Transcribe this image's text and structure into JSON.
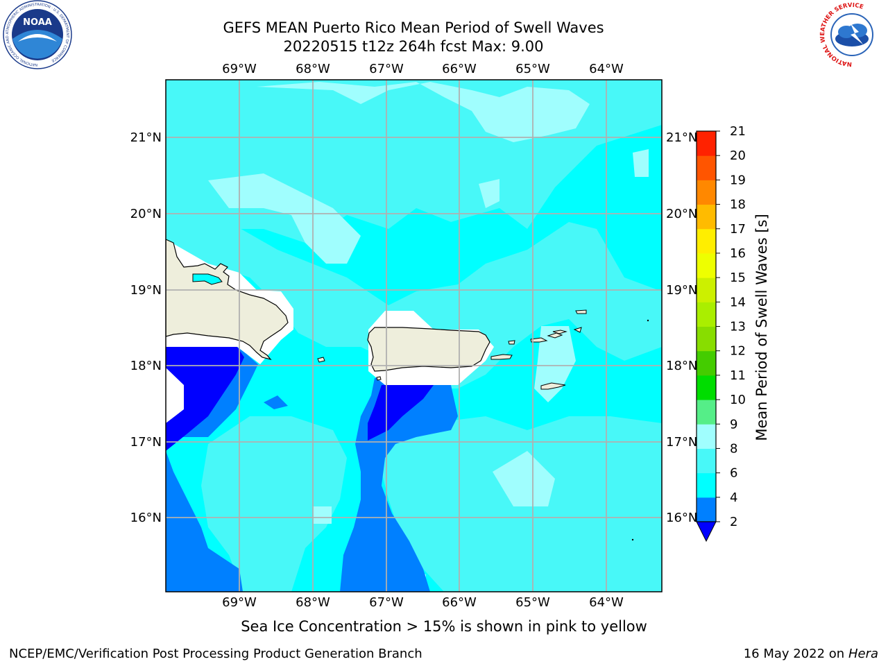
{
  "header": {
    "title_line1": "GEFS MEAN Puerto Rico Mean Period of Swell Waves",
    "title_line2": "20220515 t12z 264h fcst   Max: 9.00"
  },
  "map": {
    "lon_labels": [
      "69°W",
      "68°W",
      "67°W",
      "66°W",
      "65°W",
      "64°W"
    ],
    "lat_labels": [
      "21°N",
      "20°N",
      "19°N",
      "18°N",
      "17°N",
      "16°N"
    ],
    "colors": {
      "land": "#eeeedc",
      "sea_4_6": "#00ffff",
      "sea_6_8": "#48f8f8",
      "sea_8_9": "#a0fefe",
      "sea_2_4": "#0080ff",
      "sea_lt2": "#0000ff",
      "grid": "#b0b0b0"
    }
  },
  "colorbar": {
    "label": "Mean Period of Swell Waves [s]",
    "ticks": [
      "2",
      "4",
      "6",
      "8",
      "9",
      "10",
      "11",
      "12",
      "13",
      "14",
      "15",
      "16",
      "17",
      "18",
      "19",
      "20",
      "21"
    ],
    "colors": [
      "#0000ff",
      "#0080ff",
      "#00ffff",
      "#48f8f8",
      "#a0fefe",
      "#55ee88",
      "#00dd00",
      "#44cc00",
      "#88dd00",
      "#aaee00",
      "#ccf000",
      "#eeff00",
      "#ffee00",
      "#ffbb00",
      "#ff8800",
      "#ff5500",
      "#ff2200",
      "#ff0000"
    ]
  },
  "footer": {
    "note": "Sea Ice Concentration > 15% is shown in pink to yellow",
    "credit": "NCEP/EMC/Verification Post Processing Product Generation Branch",
    "date": "16 May 2022 on",
    "host": "Hera"
  },
  "logos": {
    "noaa_text": "NOAA",
    "noaa_ring": "NATIONAL OCEANIC AND ATMOSPHERIC ADMINISTRATION · U.S. DEPARTMENT OF COMMERCE",
    "nws_ring": "NATIONAL WEATHER SERVICE"
  }
}
